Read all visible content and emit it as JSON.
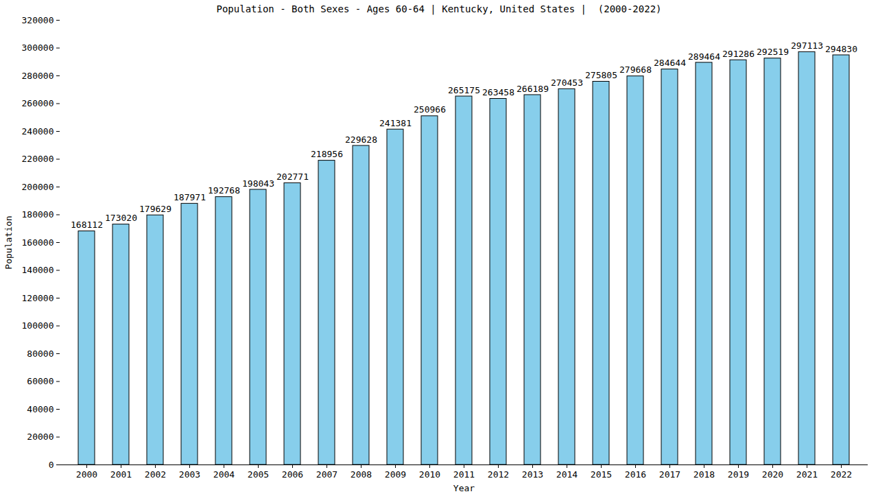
{
  "chart_data": {
    "type": "bar",
    "title": "Population - Both Sexes - Ages 60-64 | Kentucky, United States |  (2000-2022)",
    "x_label": "Year",
    "y_label": "Population",
    "categories": [
      "2000",
      "2001",
      "2002",
      "2003",
      "2004",
      "2005",
      "2006",
      "2007",
      "2008",
      "2009",
      "2010",
      "2011",
      "2012",
      "2013",
      "2014",
      "2015",
      "2016",
      "2017",
      "2018",
      "2019",
      "2020",
      "2021",
      "2022"
    ],
    "values": [
      168112,
      173020,
      179629,
      187971,
      192768,
      198043,
      202771,
      218956,
      229628,
      241381,
      250966,
      265175,
      263458,
      266189,
      270453,
      275805,
      279668,
      284644,
      289464,
      291286,
      292519,
      297113,
      294830
    ],
    "color": "#87ceeb",
    "ylim": [
      0,
      320000
    ],
    "yticks": [
      0,
      20000,
      40000,
      60000,
      80000,
      100000,
      120000,
      140000,
      160000,
      180000,
      200000,
      220000,
      240000,
      260000,
      280000,
      300000,
      320000
    ],
    "grid": false,
    "data_labels": true
  }
}
